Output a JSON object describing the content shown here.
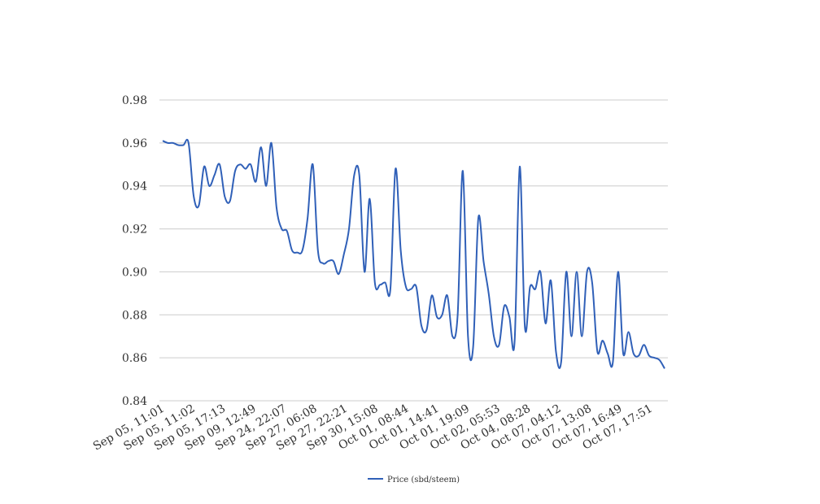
{
  "chart_data": {
    "type": "line",
    "title": "",
    "xlabel": "",
    "ylabel": "",
    "ylim": [
      0.84,
      0.98
    ],
    "yticks": [
      0.84,
      0.86,
      0.88,
      0.9,
      0.92,
      0.94,
      0.96,
      0.98
    ],
    "ytick_labels": [
      "0.84",
      "0.86",
      "0.88",
      "0.90",
      "0.92",
      "0.94",
      "0.96",
      "0.98"
    ],
    "grid": true,
    "legend_position": "bottom",
    "line_color": "#3060b8",
    "grid_color": "#cccccc",
    "xtick_labels": [
      "Sep 05, 11:01",
      "Sep 05, 11:02",
      "Sep 05, 17:13",
      "Sep 09, 12:49",
      "Sep 24, 22:07",
      "Sep 27, 06:08",
      "Sep 27, 22:21",
      "Sep 30, 15:08",
      "Oct 01, 08:44",
      "Oct 01, 14:41",
      "Oct 01, 19:09",
      "Oct 02, 05:53",
      "Oct 04, 08:28",
      "Oct 07, 04:12",
      "Oct 07, 13:08",
      "Oct 07, 16:49",
      "Oct 07, 17:51"
    ],
    "series": [
      {
        "name": "Price (sbd/steem)",
        "values": [
          0.961,
          0.96,
          0.96,
          0.959,
          0.959,
          0.96,
          0.935,
          0.931,
          0.949,
          0.94,
          0.945,
          0.95,
          0.935,
          0.933,
          0.947,
          0.95,
          0.948,
          0.95,
          0.942,
          0.958,
          0.94,
          0.96,
          0.93,
          0.92,
          0.919,
          0.91,
          0.909,
          0.91,
          0.925,
          0.95,
          0.91,
          0.904,
          0.905,
          0.905,
          0.899,
          0.908,
          0.92,
          0.945,
          0.945,
          0.9,
          0.934,
          0.895,
          0.894,
          0.895,
          0.892,
          0.948,
          0.91,
          0.893,
          0.892,
          0.893,
          0.875,
          0.873,
          0.889,
          0.879,
          0.88,
          0.889,
          0.87,
          0.88,
          0.947,
          0.87,
          0.865,
          0.925,
          0.905,
          0.89,
          0.87,
          0.866,
          0.884,
          0.879,
          0.867,
          0.949,
          0.874,
          0.893,
          0.892,
          0.9,
          0.876,
          0.896,
          0.863,
          0.858,
          0.9,
          0.87,
          0.9,
          0.87,
          0.9,
          0.895,
          0.863,
          0.868,
          0.862,
          0.858,
          0.9,
          0.862,
          0.872,
          0.862,
          0.861,
          0.866,
          0.861,
          0.86,
          0.859,
          0.855
        ]
      }
    ]
  }
}
